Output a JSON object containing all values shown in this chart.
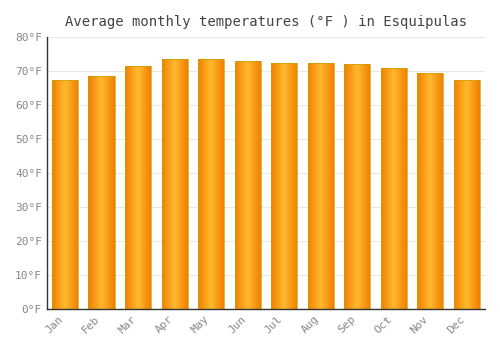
{
  "title": "Average monthly temperatures (°F ) in Esquipulas",
  "months": [
    "Jan",
    "Feb",
    "Mar",
    "Apr",
    "May",
    "Jun",
    "Jul",
    "Aug",
    "Sep",
    "Oct",
    "Nov",
    "Dec"
  ],
  "values": [
    67.5,
    68.5,
    71.5,
    73.5,
    73.5,
    73.0,
    72.5,
    72.5,
    72.0,
    71.0,
    69.5,
    67.5
  ],
  "ylim": [
    0,
    80
  ],
  "yticks": [
    0,
    10,
    20,
    30,
    40,
    50,
    60,
    70,
    80
  ],
  "ytick_labels": [
    "0°F",
    "10°F",
    "20°F",
    "30°F",
    "40°F",
    "50°F",
    "60°F",
    "70°F",
    "80°F"
  ],
  "bar_color_center": "#FFB830",
  "bar_color_edge": "#F08000",
  "background_color": "#ffffff",
  "grid_color": "#e8e8e8",
  "title_fontsize": 10,
  "tick_fontsize": 8,
  "font_family": "monospace",
  "bar_width": 0.72,
  "bar_edge_color": "#c8a000",
  "bar_edge_width": 0.5
}
